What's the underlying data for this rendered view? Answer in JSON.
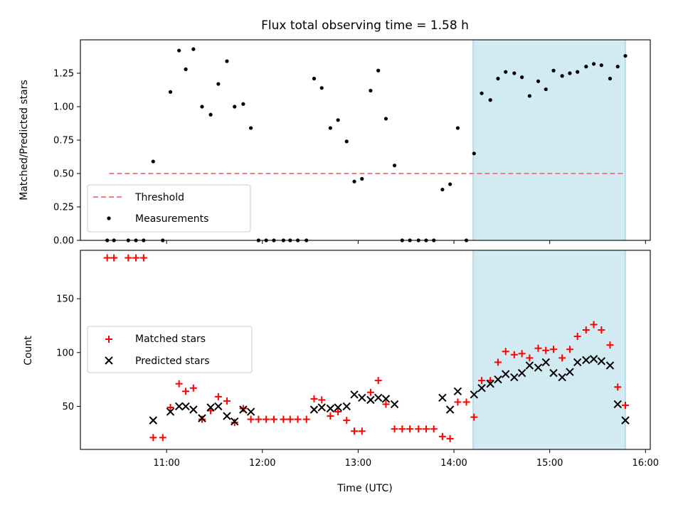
{
  "chart_data": {
    "type": "scatter",
    "title": "Flux total observing time = 1.58 h",
    "xlabel": "Time (UTC)",
    "x_unit": "hours UTC",
    "xlim": [
      10.1,
      16.05
    ],
    "x_ticks": [
      {
        "value": 11,
        "label": "11:00"
      },
      {
        "value": 12,
        "label": "12:00"
      },
      {
        "value": 13,
        "label": "13:00"
      },
      {
        "value": 14,
        "label": "14:00"
      },
      {
        "value": 15,
        "label": "15:00"
      },
      {
        "value": 16,
        "label": "16:00"
      }
    ],
    "shaded_region": {
      "x_start": 14.2,
      "x_end": 15.79,
      "color": "#add8e6"
    },
    "panels": [
      {
        "name": "ratio",
        "ylabel": "Matched/Predicted stars",
        "ylim": [
          0,
          1.5
        ],
        "y_ticks": [
          {
            "value": 0,
            "label": "0.00"
          },
          {
            "value": 0.25,
            "label": "0.25"
          },
          {
            "value": 0.5,
            "label": "0.50"
          },
          {
            "value": 0.75,
            "label": "0.75"
          },
          {
            "value": 1.0,
            "label": "1.00"
          },
          {
            "value": 1.25,
            "label": "1.25"
          }
        ],
        "threshold": {
          "name": "Threshold",
          "value": 0.5,
          "x_start": 10.4,
          "x_end": 15.79,
          "color": "#f08080"
        },
        "series": [
          {
            "name": "Measurements",
            "color": "#000000",
            "marker": "dot",
            "points": [
              [
                10.38,
                0
              ],
              [
                10.45,
                0
              ],
              [
                10.6,
                0
              ],
              [
                10.68,
                0
              ],
              [
                10.76,
                0
              ],
              [
                10.86,
                0.59
              ],
              [
                10.96,
                0
              ],
              [
                11.04,
                1.11
              ],
              [
                11.13,
                1.42
              ],
              [
                11.2,
                1.28
              ],
              [
                11.28,
                1.43
              ],
              [
                11.37,
                1.0
              ],
              [
                11.46,
                0.94
              ],
              [
                11.54,
                1.17
              ],
              [
                11.63,
                1.34
              ],
              [
                11.71,
                1.0
              ],
              [
                11.8,
                1.02
              ],
              [
                11.88,
                0.84
              ],
              [
                11.96,
                0
              ],
              [
                12.04,
                0
              ],
              [
                12.12,
                0
              ],
              [
                12.22,
                0
              ],
              [
                12.29,
                0
              ],
              [
                12.37,
                0
              ],
              [
                12.46,
                0
              ],
              [
                12.54,
                1.21
              ],
              [
                12.62,
                1.14
              ],
              [
                12.71,
                0.84
              ],
              [
                12.79,
                0.9
              ],
              [
                12.88,
                0.74
              ],
              [
                12.96,
                0.44
              ],
              [
                13.04,
                0.46
              ],
              [
                13.13,
                1.12
              ],
              [
                13.21,
                1.27
              ],
              [
                13.29,
                0.91
              ],
              [
                13.38,
                0.56
              ],
              [
                13.46,
                0
              ],
              [
                13.54,
                0
              ],
              [
                13.63,
                0
              ],
              [
                13.71,
                0
              ],
              [
                13.79,
                0
              ],
              [
                13.88,
                0.38
              ],
              [
                13.96,
                0.42
              ],
              [
                14.04,
                0.84
              ],
              [
                14.13,
                0
              ],
              [
                14.21,
                0.65
              ],
              [
                14.29,
                1.1
              ],
              [
                14.38,
                1.05
              ],
              [
                14.46,
                1.21
              ],
              [
                14.54,
                1.26
              ],
              [
                14.63,
                1.25
              ],
              [
                14.71,
                1.22
              ],
              [
                14.79,
                1.08
              ],
              [
                14.88,
                1.19
              ],
              [
                14.96,
                1.13
              ],
              [
                15.04,
                1.27
              ],
              [
                15.13,
                1.23
              ],
              [
                15.21,
                1.25
              ],
              [
                15.29,
                1.26
              ],
              [
                15.38,
                1.3
              ],
              [
                15.46,
                1.32
              ],
              [
                15.54,
                1.31
              ],
              [
                15.63,
                1.21
              ],
              [
                15.71,
                1.3
              ],
              [
                15.79,
                1.38
              ]
            ]
          }
        ]
      },
      {
        "name": "count",
        "ylabel": "Count",
        "ylim": [
          10,
          195
        ],
        "y_ticks": [
          {
            "value": 50,
            "label": "50"
          },
          {
            "value": 100,
            "label": "100"
          },
          {
            "value": 150,
            "label": "150"
          }
        ],
        "series": [
          {
            "name": "Matched stars",
            "color": "#ff0000",
            "marker": "plus",
            "points": [
              [
                10.38,
                188
              ],
              [
                10.45,
                188
              ],
              [
                10.6,
                188
              ],
              [
                10.68,
                188
              ],
              [
                10.76,
                188
              ],
              [
                10.86,
                21
              ],
              [
                10.96,
                21
              ],
              [
                11.04,
                49
              ],
              [
                11.13,
                71
              ],
              [
                11.2,
                64
              ],
              [
                11.28,
                67
              ],
              [
                11.37,
                38
              ],
              [
                11.46,
                46
              ],
              [
                11.54,
                59
              ],
              [
                11.63,
                55
              ],
              [
                11.71,
                35
              ],
              [
                11.8,
                48
              ],
              [
                11.88,
                38
              ],
              [
                11.96,
                38
              ],
              [
                12.04,
                38
              ],
              [
                12.12,
                38
              ],
              [
                12.22,
                38
              ],
              [
                12.29,
                38
              ],
              [
                12.37,
                38
              ],
              [
                12.46,
                38
              ],
              [
                12.54,
                57
              ],
              [
                12.62,
                56
              ],
              [
                12.71,
                41
              ],
              [
                12.79,
                45
              ],
              [
                12.88,
                37
              ],
              [
                12.96,
                27
              ],
              [
                13.04,
                27
              ],
              [
                13.13,
                63
              ],
              [
                13.21,
                74
              ],
              [
                13.29,
                52
              ],
              [
                13.38,
                29
              ],
              [
                13.46,
                29
              ],
              [
                13.54,
                29
              ],
              [
                13.63,
                29
              ],
              [
                13.71,
                29
              ],
              [
                13.79,
                29
              ],
              [
                13.88,
                22
              ],
              [
                13.96,
                20
              ],
              [
                14.04,
                54
              ],
              [
                14.13,
                54
              ],
              [
                14.21,
                40
              ],
              [
                14.29,
                74
              ],
              [
                14.38,
                74
              ],
              [
                14.46,
                91
              ],
              [
                14.54,
                101
              ],
              [
                14.63,
                98
              ],
              [
                14.71,
                99
              ],
              [
                14.79,
                95
              ],
              [
                14.88,
                104
              ],
              [
                14.96,
                102
              ],
              [
                15.04,
                103
              ],
              [
                15.13,
                95
              ],
              [
                15.21,
                103
              ],
              [
                15.29,
                115
              ],
              [
                15.38,
                121
              ],
              [
                15.46,
                126
              ],
              [
                15.54,
                121
              ],
              [
                15.63,
                107
              ],
              [
                15.71,
                68
              ],
              [
                15.79,
                51
              ]
            ]
          },
          {
            "name": "Predicted stars",
            "color": "#000000",
            "marker": "x",
            "points": [
              [
                10.86,
                37
              ],
              [
                11.04,
                45
              ],
              [
                11.13,
                50
              ],
              [
                11.2,
                50
              ],
              [
                11.28,
                47
              ],
              [
                11.37,
                39
              ],
              [
                11.46,
                49
              ],
              [
                11.54,
                50
              ],
              [
                11.63,
                41
              ],
              [
                11.71,
                36
              ],
              [
                11.8,
                47
              ],
              [
                11.88,
                45
              ],
              [
                12.54,
                47
              ],
              [
                12.62,
                49
              ],
              [
                12.71,
                48
              ],
              [
                12.79,
                49
              ],
              [
                12.88,
                50
              ],
              [
                12.96,
                61
              ],
              [
                13.04,
                58
              ],
              [
                13.13,
                56
              ],
              [
                13.21,
                58
              ],
              [
                13.29,
                57
              ],
              [
                13.38,
                52
              ],
              [
                13.88,
                58
              ],
              [
                13.96,
                47
              ],
              [
                14.04,
                64
              ],
              [
                14.21,
                61
              ],
              [
                14.29,
                67
              ],
              [
                14.38,
                71
              ],
              [
                14.46,
                75
              ],
              [
                14.54,
                80
              ],
              [
                14.63,
                77
              ],
              [
                14.71,
                81
              ],
              [
                14.79,
                88
              ],
              [
                14.88,
                86
              ],
              [
                14.96,
                91
              ],
              [
                15.04,
                81
              ],
              [
                15.13,
                77
              ],
              [
                15.21,
                82
              ],
              [
                15.29,
                91
              ],
              [
                15.38,
                93
              ],
              [
                15.46,
                94
              ],
              [
                15.54,
                92
              ],
              [
                15.63,
                88
              ],
              [
                15.71,
                52
              ],
              [
                15.79,
                37
              ]
            ]
          }
        ]
      }
    ]
  }
}
